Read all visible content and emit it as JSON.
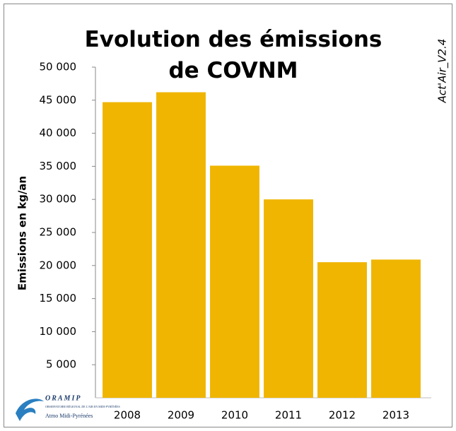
{
  "chart_data": {
    "type": "bar",
    "title": "Evolution des émissions de COVNM",
    "y_label": "Emissions en kg/an",
    "categories": [
      "2008",
      "2009",
      "2010",
      "2011",
      "2012",
      "2013"
    ],
    "values": [
      44700,
      46200,
      35100,
      30000,
      20500,
      20900
    ],
    "color": "#efb500",
    "ylim": [
      0,
      50000
    ],
    "yticks": [
      {
        "value": 5000,
        "label": "5 000"
      },
      {
        "value": 10000,
        "label": "10 000"
      },
      {
        "value": 15000,
        "label": "15 000"
      },
      {
        "value": 20000,
        "label": "20 000"
      },
      {
        "value": 25000,
        "label": "25 000"
      },
      {
        "value": 30000,
        "label": "30 000"
      },
      {
        "value": 35000,
        "label": "35 000"
      },
      {
        "value": 40000,
        "label": "40 000"
      },
      {
        "value": 45000,
        "label": "45 000"
      },
      {
        "value": 50000,
        "label": "50 000"
      }
    ],
    "grid": false
  },
  "watermark": "Act'Air_V2.4",
  "logo": {
    "name": "ORAMIP",
    "subtitle": "OBSERVATOIRE RÉGIONAL DE L'AIR EN MIDI-PYRÉNÉES",
    "tagline": "Atmo Midi-Pyrénées"
  }
}
